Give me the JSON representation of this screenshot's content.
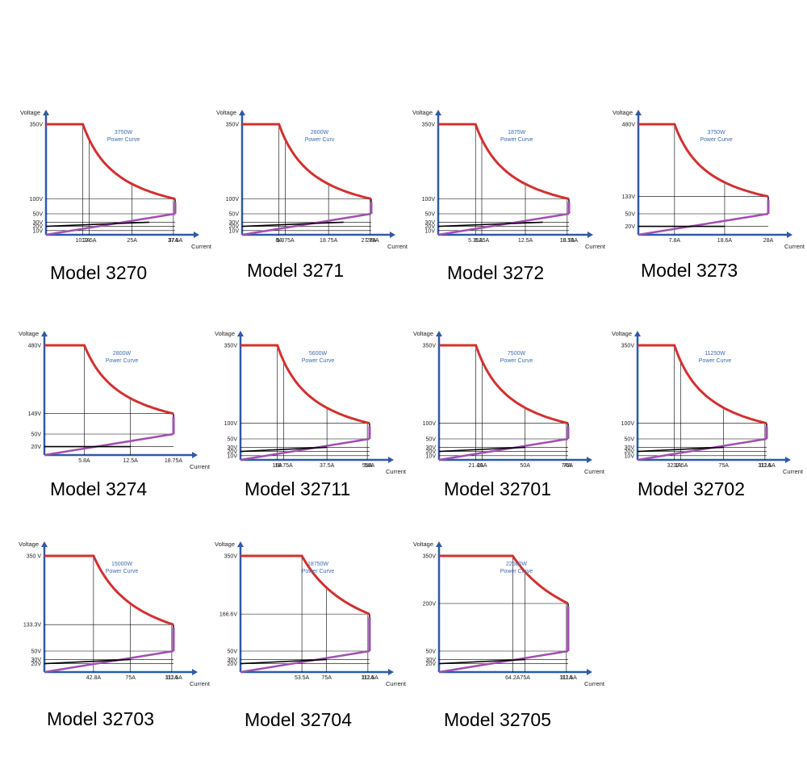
{
  "chart_data": [
    {
      "type": "line",
      "model": "Model 3270",
      "power_label": "3750W",
      "power_sub": "Power Curve",
      "ylabel": "Voltage",
      "xlabel": "Current",
      "v_max": 350,
      "i_max": 37.5,
      "v_knee": 100,
      "v_low": 50,
      "v_base": 10,
      "yticks": [
        {
          "v": 350,
          "label": "350V"
        },
        {
          "v": 100,
          "label": "100V"
        },
        {
          "v": 50,
          "label": "50V"
        },
        {
          "v": 30,
          "label": "30V"
        },
        {
          "v": 20,
          "label": "20V"
        },
        {
          "v": 10,
          "label": "10V"
        }
      ],
      "xticks": [
        {
          "i": 10.7,
          "label": "10.7A"
        },
        {
          "i": 12.5,
          "label": "12.5A"
        },
        {
          "i": 25,
          "label": "25A"
        },
        {
          "i": 37,
          "label": "37A"
        },
        {
          "i": 37.5,
          "label": "37.5A"
        }
      ],
      "black_line": [
        [
          0,
          20
        ],
        [
          30,
          30
        ]
      ]
    },
    {
      "type": "line",
      "model": "Model 3271",
      "power_label": "2800W",
      "power_sub": "Power Curv",
      "ylabel": "Voltage",
      "xlabel": "Current",
      "v_max": 350,
      "i_max": 28,
      "v_knee": 100,
      "v_low": 50,
      "v_base": 10,
      "yticks": [
        {
          "v": 350,
          "label": "350V"
        },
        {
          "v": 100,
          "label": "100V"
        },
        {
          "v": 50,
          "label": "50V"
        },
        {
          "v": 30,
          "label": "30V"
        },
        {
          "v": 20,
          "label": "20V"
        },
        {
          "v": 10,
          "label": "10V"
        }
      ],
      "xticks": [
        {
          "i": 8,
          "label": "8A"
        },
        {
          "i": 9.375,
          "label": "9.375A"
        },
        {
          "i": 18.75,
          "label": "18.75A"
        },
        {
          "i": 27.75,
          "label": "27.75A"
        },
        {
          "i": 28,
          "label": "28A"
        }
      ],
      "black_line": [
        [
          0,
          20
        ],
        [
          22,
          30
        ]
      ]
    },
    {
      "type": "line",
      "model": "Model 3272",
      "power_label": "1875W",
      "power_sub": "Power Curve",
      "ylabel": "Voltage",
      "xlabel": "Current",
      "v_max": 350,
      "i_max": 18.75,
      "v_knee": 100,
      "v_low": 50,
      "v_base": 10,
      "yticks": [
        {
          "v": 350,
          "label": "350V"
        },
        {
          "v": 100,
          "label": "100V"
        },
        {
          "v": 50,
          "label": "50V"
        },
        {
          "v": 30,
          "label": "30V"
        },
        {
          "v": 20,
          "label": "20V"
        },
        {
          "v": 10,
          "label": "10V"
        }
      ],
      "xticks": [
        {
          "i": 5.35,
          "label": "5.35A"
        },
        {
          "i": 6.25,
          "label": "6.25A"
        },
        {
          "i": 12.5,
          "label": "12.5A"
        },
        {
          "i": 18.5,
          "label": "18.5A"
        },
        {
          "i": 18.75,
          "label": "18.75A"
        }
      ],
      "black_line": [
        [
          0,
          20
        ],
        [
          15,
          30
        ]
      ]
    },
    {
      "type": "line",
      "model": "Model 3273",
      "power_label": "3750W",
      "power_sub": "Power Curve",
      "ylabel": "Voltage",
      "xlabel": "Current",
      "v_max": 480,
      "i_max": 28,
      "v_knee": 133,
      "v_low": 50,
      "v_base": 0,
      "yticks": [
        {
          "v": 480,
          "label": "480V"
        },
        {
          "v": 133,
          "label": "133V"
        },
        {
          "v": 50,
          "label": "50V"
        },
        {
          "v": 20,
          "label": "20V"
        }
      ],
      "xticks": [
        {
          "i": 7.8,
          "label": "7.8A"
        },
        {
          "i": 18.6,
          "label": "18.6A"
        },
        {
          "i": 28,
          "label": "28A"
        }
      ],
      "black_line": [
        [
          0,
          20
        ],
        [
          18.6,
          20
        ]
      ]
    },
    {
      "type": "line",
      "model": "Model 3274",
      "power_label": "2800W",
      "power_sub": "Power Curve",
      "ylabel": "Voltage",
      "xlabel": "Current",
      "v_max": 480,
      "i_max": 18.75,
      "v_knee": 149,
      "v_low": 50,
      "v_base": 0,
      "yticks": [
        {
          "v": 480,
          "label": "480V"
        },
        {
          "v": 149,
          "label": "149V"
        },
        {
          "v": 50,
          "label": "50V"
        },
        {
          "v": 20,
          "label": "20V"
        }
      ],
      "xticks": [
        {
          "i": 5.8,
          "label": "5.8A"
        },
        {
          "i": 12.5,
          "label": "12.5A"
        },
        {
          "i": 18.75,
          "label": "18.75A"
        }
      ],
      "black_line": [
        [
          0,
          20
        ],
        [
          12.5,
          20
        ]
      ]
    },
    {
      "type": "line",
      "model": "Model 32711",
      "power_label": "5600W",
      "power_sub": "Power Curve",
      "ylabel": "Voltage",
      "xlabel": "Current",
      "v_max": 350,
      "i_max": 56,
      "v_knee": 100,
      "v_low": 50,
      "v_base": 10,
      "yticks": [
        {
          "v": 350,
          "label": "350V"
        },
        {
          "v": 100,
          "label": "100V"
        },
        {
          "v": 50,
          "label": "50V"
        },
        {
          "v": 30,
          "label": "30V"
        },
        {
          "v": 20,
          "label": "20V"
        },
        {
          "v": 10,
          "label": "10V"
        }
      ],
      "xticks": [
        {
          "i": 16,
          "label": "16A"
        },
        {
          "i": 18.75,
          "label": "18.75A"
        },
        {
          "i": 37.5,
          "label": "37.5A"
        },
        {
          "i": 55,
          "label": "55A"
        },
        {
          "i": 56,
          "label": "56A"
        }
      ],
      "black_line": [
        [
          0,
          20
        ],
        [
          37.5,
          30
        ]
      ]
    },
    {
      "type": "line",
      "model": "Model 32701",
      "power_label": "7500W",
      "power_sub": "Power Curve",
      "ylabel": "Voltage",
      "xlabel": "Current",
      "v_max": 350,
      "i_max": 75,
      "v_knee": 100,
      "v_low": 50,
      "v_base": 10,
      "yticks": [
        {
          "v": 350,
          "label": "350V"
        },
        {
          "v": 100,
          "label": "100V"
        },
        {
          "v": 50,
          "label": "50V"
        },
        {
          "v": 30,
          "label": "30V"
        },
        {
          "v": 20,
          "label": "20V"
        },
        {
          "v": 10,
          "label": "10V"
        }
      ],
      "xticks": [
        {
          "i": 21.4,
          "label": "21.4A"
        },
        {
          "i": 25,
          "label": "25A"
        },
        {
          "i": 50,
          "label": "50A"
        },
        {
          "i": 74,
          "label": "74A"
        },
        {
          "i": 75,
          "label": "75A"
        }
      ],
      "black_line": [
        [
          0,
          20
        ],
        [
          50,
          30
        ]
      ]
    },
    {
      "type": "line",
      "model": "Model 32702",
      "power_label": "11250W",
      "power_sub": "Power Curve",
      "ylabel": "Voltage",
      "xlabel": "Current",
      "v_max": 350,
      "i_max": 112.5,
      "v_knee": 100,
      "v_low": 50,
      "v_base": 10,
      "yticks": [
        {
          "v": 350,
          "label": "350V"
        },
        {
          "v": 100,
          "label": "100V"
        },
        {
          "v": 50,
          "label": "50V"
        },
        {
          "v": 30,
          "label": "30V"
        },
        {
          "v": 20,
          "label": "20V"
        },
        {
          "v": 10,
          "label": "10V"
        }
      ],
      "xticks": [
        {
          "i": 32.1,
          "label": "32.1A"
        },
        {
          "i": 37.5,
          "label": "37.5A"
        },
        {
          "i": 75,
          "label": "75A"
        },
        {
          "i": 111,
          "label": "111A"
        },
        {
          "i": 112.5,
          "label": "112.5A"
        }
      ],
      "black_line": [
        [
          0,
          20
        ],
        [
          75,
          30
        ]
      ]
    },
    {
      "type": "line",
      "model": "Model 32703",
      "power_label": "15000W",
      "power_sub": "Power Curve",
      "ylabel": "Voltage",
      "xlabel": "Current",
      "v_max": 350,
      "i_max": 112.5,
      "v_knee": 133.3,
      "v_low": 50,
      "v_base": 0,
      "yticks": [
        {
          "v": 350,
          "label": "350 V"
        },
        {
          "v": 133.3,
          "label": "133.3V"
        },
        {
          "v": 50,
          "label": "50V"
        },
        {
          "v": 30,
          "label": "30V"
        },
        {
          "v": 20,
          "label": "20V"
        }
      ],
      "xticks": [
        {
          "i": 42.8,
          "label": "42.8A"
        },
        {
          "i": 75,
          "label": "75A"
        },
        {
          "i": 111,
          "label": "111A"
        },
        {
          "i": 112.5,
          "label": "112.5A"
        }
      ],
      "black_line": [
        [
          0,
          20
        ],
        [
          75,
          30
        ]
      ]
    },
    {
      "type": "line",
      "model": "Model 32704",
      "power_label": "18750W",
      "power_sub": "Power Curve",
      "ylabel": "Voltage",
      "xlabel": "Current",
      "v_max": 350,
      "i_max": 112.5,
      "v_knee": 166.6,
      "v_low": 50,
      "v_base": 0,
      "yticks": [
        {
          "v": 350,
          "label": "350V"
        },
        {
          "v": 166.6,
          "label": "166.6V"
        },
        {
          "v": 50,
          "label": "50V"
        },
        {
          "v": 30,
          "label": "30V"
        },
        {
          "v": 20,
          "label": "20V"
        }
      ],
      "xticks": [
        {
          "i": 53.5,
          "label": "53.5A"
        },
        {
          "i": 75,
          "label": "75A"
        },
        {
          "i": 111,
          "label": "111A"
        },
        {
          "i": 112.5,
          "label": "112.5A"
        }
      ],
      "black_line": [
        [
          0,
          20
        ],
        [
          75,
          30
        ]
      ]
    },
    {
      "type": "line",
      "model": "Model 32705",
      "power_label": "22500W",
      "power_sub": "Power Curve",
      "ylabel": "Voltage",
      "xlabel": "Current",
      "v_max": 350,
      "i_max": 112.5,
      "v_knee": 200,
      "v_low": 50,
      "v_base": 0,
      "yticks": [
        {
          "v": 350,
          "label": "350V"
        },
        {
          "v": 200,
          "label": "200V"
        },
        {
          "v": 50,
          "label": "50V"
        },
        {
          "v": 30,
          "label": "30V"
        },
        {
          "v": 20,
          "label": "20V"
        }
      ],
      "xticks": [
        {
          "i": 64.2,
          "label": "64.2A"
        },
        {
          "i": 75,
          "label": "75A"
        },
        {
          "i": 111,
          "label": "111A"
        },
        {
          "i": 112.5,
          "label": "112.5A"
        }
      ],
      "black_line": [
        [
          0,
          20
        ],
        [
          75,
          30
        ]
      ]
    }
  ],
  "colors": {
    "power_curve": "#d33030",
    "low_line": "#a050b0",
    "axis": "#2e5aa8",
    "grid": "#000000",
    "power_text": "#3b6cb5"
  }
}
